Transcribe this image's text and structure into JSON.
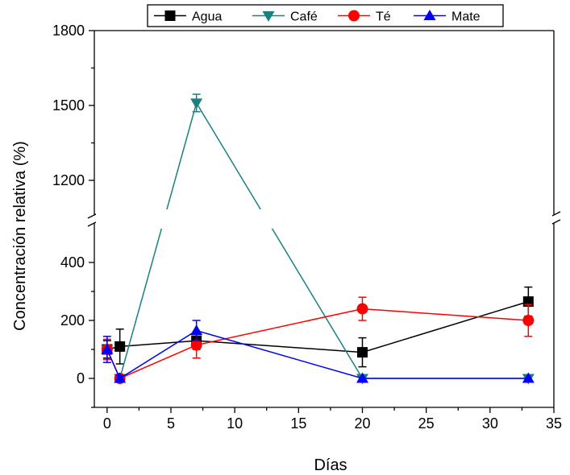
{
  "chart_data": {
    "type": "line",
    "xlabel": "Días",
    "ylabel": "Concentración relativa (%)",
    "xlim": [
      -1,
      35
    ],
    "xticks": [
      0,
      5,
      10,
      15,
      20,
      25,
      30,
      35
    ],
    "ylim_lower": [
      -100,
      500
    ],
    "ylim_upper": [
      1100,
      1800
    ],
    "yticks_lower": [
      0,
      200,
      400
    ],
    "yticks_upper": [
      1200,
      1500,
      1800
    ],
    "axis_break": true,
    "legend_position": "top",
    "x": [
      0,
      1,
      7,
      20,
      33
    ],
    "series": [
      {
        "name": "Agua",
        "color": "#000000",
        "marker": "square",
        "values": [
          100,
          110,
          130,
          90,
          265
        ],
        "errors": [
          30,
          60,
          30,
          50,
          50
        ]
      },
      {
        "name": "Café",
        "color": "#1b8080",
        "marker": "triangle-down",
        "values": [
          100,
          0,
          1510,
          0,
          0
        ],
        "errors": [
          0,
          0,
          35,
          0,
          0
        ]
      },
      {
        "name": "Té",
        "color": "#ff0000",
        "marker": "circle",
        "values": [
          100,
          0,
          115,
          240,
          200
        ],
        "errors": [
          35,
          10,
          45,
          40,
          55
        ]
      },
      {
        "name": "Mate",
        "color": "#0000ff",
        "marker": "triangle-up",
        "values": [
          100,
          0,
          165,
          0,
          0
        ],
        "errors": [
          45,
          10,
          35,
          0,
          0
        ]
      }
    ]
  }
}
